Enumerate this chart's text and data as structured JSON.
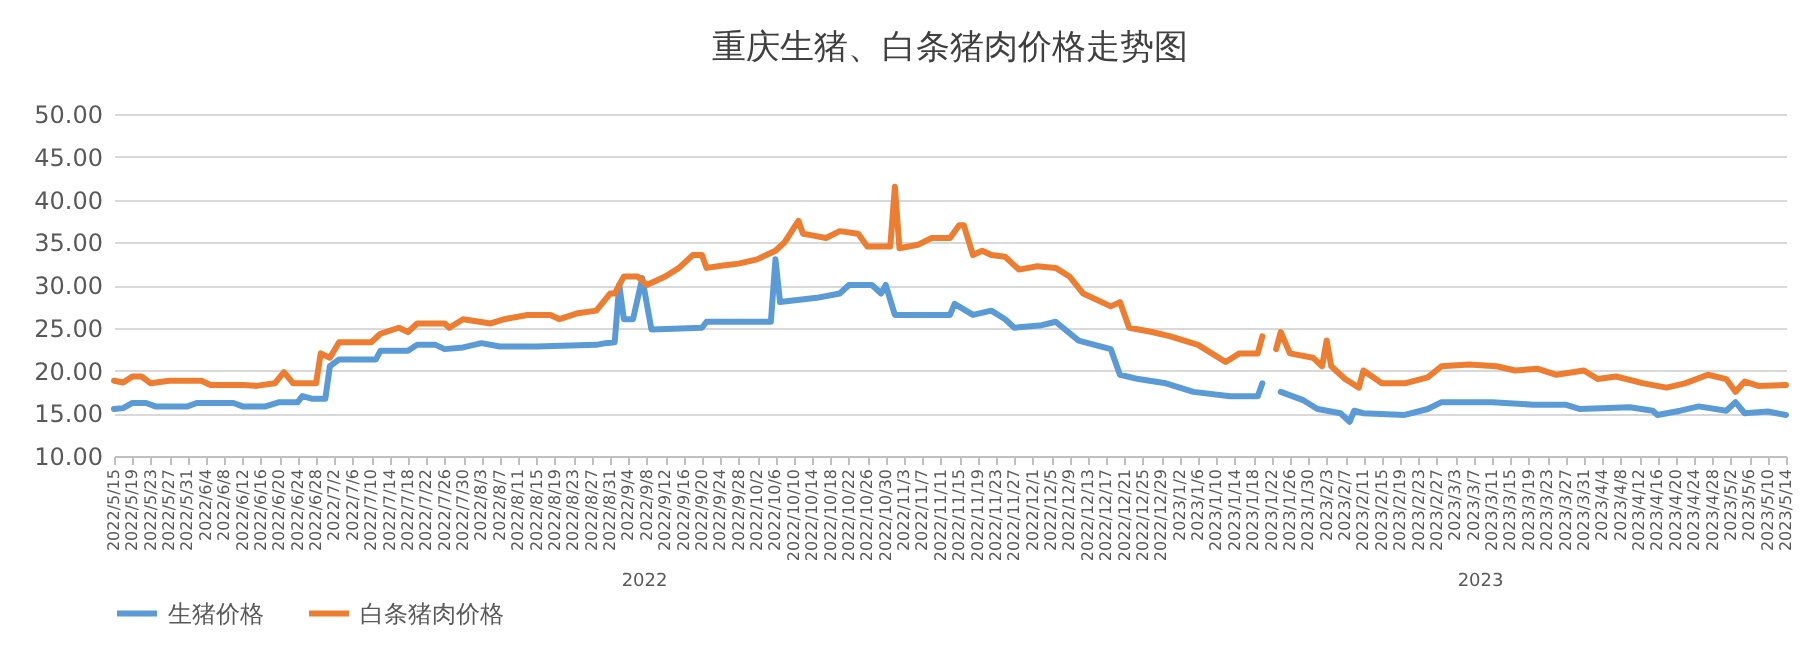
{
  "chart_data": {
    "type": "line",
    "title": "重庆生猪、白条猪肉价格走势图",
    "annotations": [
      "2022",
      "2023"
    ],
    "series": [
      {
        "name": "生猪价格",
        "color": "#5b9bd5",
        "x": [
          "2022-05-15",
          "2022-05-17",
          "2022-05-19",
          "2022-05-22",
          "2022-05-24",
          "2022-05-31",
          "2022-06-02",
          "2022-06-10",
          "2022-06-12",
          "2022-06-17",
          "2022-06-20",
          "2022-06-24",
          "2022-06-25",
          "2022-06-27",
          "2022-06-30",
          "2022-07-01",
          "2022-07-03",
          "2022-07-11",
          "2022-07-12",
          "2022-07-18",
          "2022-07-20",
          "2022-07-24",
          "2022-07-26",
          "2022-07-30",
          "2022-08-03",
          "2022-08-07",
          "2022-08-15",
          "2022-08-28",
          "2022-08-30",
          "2022-09-01",
          "2022-09-02",
          "2022-09-03",
          "2022-09-05",
          "2022-09-07",
          "2022-09-09",
          "2022-09-20",
          "2022-09-21",
          "2022-10-05",
          "2022-10-06",
          "2022-10-07",
          "2022-10-15",
          "2022-10-20",
          "2022-10-22",
          "2022-10-27",
          "2022-10-29",
          "2022-10-30",
          "2022-11-01",
          "2022-11-13",
          "2022-11-14",
          "2022-11-18",
          "2022-11-22",
          "2022-11-25",
          "2022-11-27",
          "2022-12-03",
          "2022-12-06",
          "2022-12-11",
          "2022-12-18",
          "2022-12-20",
          "2022-12-24",
          "2022-12-30",
          "2023-01-05",
          "2023-01-13",
          "2023-01-19",
          "2023-01-20",
          "2023-01-21",
          "2023-01-24",
          "2023-01-29",
          "2023-02-01",
          "2023-02-06",
          "2023-02-08",
          "2023-02-09",
          "2023-02-11",
          "2023-02-20",
          "2023-02-25",
          "2023-02-28",
          "2023-03-11",
          "2023-03-20",
          "2023-03-27",
          "2023-03-30",
          "2023-04-10",
          "2023-04-15",
          "2023-04-16",
          "2023-04-21",
          "2023-04-25",
          "2023-05-01",
          "2023-05-03",
          "2023-05-05",
          "2023-05-10",
          "2023-05-14"
        ],
        "values": [
          15.5,
          15.6,
          16.2,
          16.2,
          15.8,
          15.8,
          16.2,
          16.2,
          15.8,
          15.8,
          16.3,
          16.3,
          17.0,
          16.7,
          16.7,
          20.5,
          21.3,
          21.3,
          22.3,
          22.3,
          23.0,
          23.0,
          22.5,
          22.7,
          23.2,
          22.8,
          22.8,
          23.0,
          23.2,
          23.3,
          30.0,
          26.0,
          26.0,
          30.8,
          24.8,
          25.0,
          25.7,
          25.7,
          33.0,
          28.0,
          28.5,
          29.0,
          30.0,
          30.0,
          29.0,
          30.0,
          26.5,
          26.5,
          27.8,
          26.5,
          27.0,
          26.0,
          25.0,
          25.3,
          25.7,
          23.5,
          22.5,
          19.5,
          19.0,
          18.5,
          17.5,
          17.0,
          17.0,
          18.5,
          null,
          17.5,
          16.5,
          15.5,
          15.0,
          14.0,
          15.3,
          15.0,
          14.8,
          15.5,
          16.3,
          16.3,
          16.0,
          16.0,
          15.5,
          15.7,
          15.3,
          14.8,
          15.3,
          15.8,
          15.3,
          16.3,
          15.0,
          15.2,
          14.8
        ]
      },
      {
        "name": "白条猪肉价格",
        "color": "#ed7d31",
        "x": [
          "2022-05-15",
          "2022-05-17",
          "2022-05-19",
          "2022-05-21",
          "2022-05-23",
          "2022-05-27",
          "2022-06-03",
          "2022-06-05",
          "2022-06-12",
          "2022-06-15",
          "2022-06-19",
          "2022-06-21",
          "2022-06-23",
          "2022-06-28",
          "2022-06-29",
          "2022-07-01",
          "2022-07-03",
          "2022-07-10",
          "2022-07-12",
          "2022-07-16",
          "2022-07-18",
          "2022-07-20",
          "2022-07-26",
          "2022-07-27",
          "2022-07-30",
          "2022-08-05",
          "2022-08-08",
          "2022-08-13",
          "2022-08-18",
          "2022-08-20",
          "2022-08-24",
          "2022-08-28",
          "2022-08-31",
          "2022-09-01",
          "2022-09-03",
          "2022-09-06",
          "2022-09-08",
          "2022-09-12",
          "2022-09-15",
          "2022-09-18",
          "2022-09-20",
          "2022-09-21",
          "2022-09-25",
          "2022-09-28",
          "2022-10-02",
          "2022-10-06",
          "2022-10-08",
          "2022-10-11",
          "2022-10-12",
          "2022-10-14",
          "2022-10-17",
          "2022-10-20",
          "2022-10-24",
          "2022-10-26",
          "2022-10-31",
          "2022-11-01",
          "2022-11-02",
          "2022-11-06",
          "2022-11-09",
          "2022-11-13",
          "2022-11-15",
          "2022-11-16",
          "2022-11-18",
          "2022-11-20",
          "2022-11-22",
          "2022-11-25",
          "2022-11-28",
          "2022-12-02",
          "2022-12-06",
          "2022-12-09",
          "2022-12-12",
          "2022-12-18",
          "2022-12-20",
          "2022-12-22",
          "2022-12-27",
          "2022-12-31",
          "2023-01-06",
          "2023-01-12",
          "2023-01-15",
          "2023-01-19",
          "2023-01-20",
          "2023-01-21",
          "2023-01-23",
          "2023-01-24",
          "2023-01-26",
          "2023-01-31",
          "2023-02-02",
          "2023-02-03",
          "2023-02-04",
          "2023-02-07",
          "2023-02-10",
          "2023-02-11",
          "2023-02-15",
          "2023-02-20",
          "2023-02-25",
          "2023-02-28",
          "2023-03-06",
          "2023-03-12",
          "2023-03-16",
          "2023-03-21",
          "2023-03-25",
          "2023-03-31",
          "2023-04-03",
          "2023-04-07",
          "2023-04-13",
          "2023-04-18",
          "2023-04-22",
          "2023-04-27",
          "2023-05-01",
          "2023-05-03",
          "2023-05-05",
          "2023-05-08",
          "2023-05-14"
        ],
        "values": [
          18.8,
          18.6,
          19.3,
          19.3,
          18.5,
          18.8,
          18.8,
          18.3,
          18.3,
          18.2,
          18.5,
          19.8,
          18.5,
          18.5,
          22.0,
          21.5,
          23.3,
          23.3,
          24.3,
          25.0,
          24.5,
          25.5,
          25.5,
          25.0,
          26.0,
          25.5,
          26.0,
          26.5,
          26.5,
          26.0,
          26.7,
          27.0,
          29.0,
          29.0,
          31.0,
          31.0,
          30.0,
          31.0,
          32.0,
          33.5,
          33.5,
          32.0,
          32.3,
          32.5,
          33.0,
          34.0,
          35.0,
          37.5,
          36.0,
          35.8,
          35.5,
          36.3,
          36.0,
          34.5,
          34.5,
          41.5,
          34.3,
          34.7,
          35.5,
          35.5,
          37.0,
          37.0,
          33.5,
          34.0,
          33.5,
          33.3,
          31.8,
          32.2,
          32.0,
          31.0,
          29.0,
          27.5,
          28.0,
          25.0,
          24.5,
          24.0,
          23.0,
          21.0,
          22.0,
          22.0,
          24.0,
          null,
          22.5,
          24.5,
          22.0,
          21.5,
          20.5,
          23.5,
          20.5,
          19.0,
          18.0,
          20.0,
          18.5,
          18.5,
          19.2,
          20.5,
          20.7,
          20.5,
          20.0,
          20.2,
          19.5,
          20.0,
          19.0,
          19.3,
          18.5,
          18.0,
          18.5,
          19.5,
          19.0,
          17.5,
          18.7,
          18.2,
          18.3
        ]
      }
    ],
    "xlim": [
      "2022-05-15",
      "2023-05-14"
    ],
    "xticks": [
      {
        "value": "2022-05-15",
        "label": "2022/5/15"
      },
      {
        "value": "2022-05-19",
        "label": "2022/5/19"
      },
      {
        "value": "2022-05-23",
        "label": "2022/5/23"
      },
      {
        "value": "2022-05-27",
        "label": "2022/5/27"
      },
      {
        "value": "2022-05-31",
        "label": "2022/5/31"
      },
      {
        "value": "2022-06-04",
        "label": "2022/6/4"
      },
      {
        "value": "2022-06-08",
        "label": "2022/6/8"
      },
      {
        "value": "2022-06-12",
        "label": "2022/6/12"
      },
      {
        "value": "2022-06-16",
        "label": "2022/6/16"
      },
      {
        "value": "2022-06-20",
        "label": "2022/6/20"
      },
      {
        "value": "2022-06-24",
        "label": "2022/6/24"
      },
      {
        "value": "2022-06-28",
        "label": "2022/6/28"
      },
      {
        "value": "2022-07-02",
        "label": "2022/7/2"
      },
      {
        "value": "2022-07-06",
        "label": "2022/7/6"
      },
      {
        "value": "2022-07-10",
        "label": "2022/7/10"
      },
      {
        "value": "2022-07-14",
        "label": "2022/7/14"
      },
      {
        "value": "2022-07-18",
        "label": "2022/7/18"
      },
      {
        "value": "2022-07-22",
        "label": "2022/7/22"
      },
      {
        "value": "2022-07-26",
        "label": "2022/7/26"
      },
      {
        "value": "2022-07-30",
        "label": "2022/7/30"
      },
      {
        "value": "2022-08-03",
        "label": "2022/8/3"
      },
      {
        "value": "2022-08-07",
        "label": "2022/8/7"
      },
      {
        "value": "2022-08-11",
        "label": "2022/8/11"
      },
      {
        "value": "2022-08-15",
        "label": "2022/8/15"
      },
      {
        "value": "2022-08-19",
        "label": "2022/8/19"
      },
      {
        "value": "2022-08-23",
        "label": "2022/8/23"
      },
      {
        "value": "2022-08-27",
        "label": "2022/8/27"
      },
      {
        "value": "2022-08-31",
        "label": "2022/8/31"
      },
      {
        "value": "2022-09-04",
        "label": "2022/9/4"
      },
      {
        "value": "2022-09-08",
        "label": "2022/9/8"
      },
      {
        "value": "2022-09-12",
        "label": "2022/9/12"
      },
      {
        "value": "2022-09-16",
        "label": "2022/9/16"
      },
      {
        "value": "2022-09-20",
        "label": "2022/9/20"
      },
      {
        "value": "2022-09-24",
        "label": "2022/9/24"
      },
      {
        "value": "2022-09-28",
        "label": "2022/9/28"
      },
      {
        "value": "2022-10-02",
        "label": "2022/10/2"
      },
      {
        "value": "2022-10-06",
        "label": "2022/10/6"
      },
      {
        "value": "2022-10-10",
        "label": "2022/10/10"
      },
      {
        "value": "2022-10-14",
        "label": "2022/10/14"
      },
      {
        "value": "2022-10-18",
        "label": "2022/10/18"
      },
      {
        "value": "2022-10-22",
        "label": "2022/10/22"
      },
      {
        "value": "2022-10-26",
        "label": "2022/10/26"
      },
      {
        "value": "2022-10-30",
        "label": "2022/10/30"
      },
      {
        "value": "2022-11-03",
        "label": "2022/11/3"
      },
      {
        "value": "2022-11-07",
        "label": "2022/11/7"
      },
      {
        "value": "2022-11-11",
        "label": "2022/11/11"
      },
      {
        "value": "2022-11-15",
        "label": "2022/11/15"
      },
      {
        "value": "2022-11-19",
        "label": "2022/11/19"
      },
      {
        "value": "2022-11-23",
        "label": "2022/11/23"
      },
      {
        "value": "2022-11-27",
        "label": "2022/11/27"
      },
      {
        "value": "2022-12-01",
        "label": "2022/12/1"
      },
      {
        "value": "2022-12-05",
        "label": "2022/12/5"
      },
      {
        "value": "2022-12-09",
        "label": "2022/12/9"
      },
      {
        "value": "2022-12-13",
        "label": "2022/12/13"
      },
      {
        "value": "2022-12-17",
        "label": "2022/12/17"
      },
      {
        "value": "2022-12-21",
        "label": "2022/12/21"
      },
      {
        "value": "2022-12-25",
        "label": "2022/12/25"
      },
      {
        "value": "2022-12-29",
        "label": "2022/12/29"
      },
      {
        "value": "2023-01-02",
        "label": "2023/1/2"
      },
      {
        "value": "2023-01-06",
        "label": "2023/1/6"
      },
      {
        "value": "2023-01-10",
        "label": "2023/1/10"
      },
      {
        "value": "2023-01-14",
        "label": "2023/1/14"
      },
      {
        "value": "2023-01-18",
        "label": "2023/1/18"
      },
      {
        "value": "2023-01-22",
        "label": "2023/1/22"
      },
      {
        "value": "2023-01-26",
        "label": "2023/1/26"
      },
      {
        "value": "2023-01-30",
        "label": "2023/1/30"
      },
      {
        "value": "2023-02-03",
        "label": "2023/2/3"
      },
      {
        "value": "2023-02-07",
        "label": "2023/2/7"
      },
      {
        "value": "2023-02-11",
        "label": "2023/2/11"
      },
      {
        "value": "2023-02-15",
        "label": "2023/2/15"
      },
      {
        "value": "2023-02-19",
        "label": "2023/2/19"
      },
      {
        "value": "2023-02-23",
        "label": "2023/2/23"
      },
      {
        "value": "2023-02-27",
        "label": "2023/2/27"
      },
      {
        "value": "2023-03-03",
        "label": "2023/3/3"
      },
      {
        "value": "2023-03-07",
        "label": "2023/3/7"
      },
      {
        "value": "2023-03-11",
        "label": "2023/3/11"
      },
      {
        "value": "2023-03-15",
        "label": "2023/3/15"
      },
      {
        "value": "2023-03-19",
        "label": "2023/3/19"
      },
      {
        "value": "2023-03-23",
        "label": "2023/3/23"
      },
      {
        "value": "2023-03-27",
        "label": "2023/3/27"
      },
      {
        "value": "2023-03-31",
        "label": "2023/3/31"
      },
      {
        "value": "2023-04-04",
        "label": "2023/4/4"
      },
      {
        "value": "2023-04-08",
        "label": "2023/4/8"
      },
      {
        "value": "2023-04-12",
        "label": "2023/4/12"
      },
      {
        "value": "2023-04-16",
        "label": "2023/4/16"
      },
      {
        "value": "2023-04-20",
        "label": "2023/4/20"
      },
      {
        "value": "2023-04-24",
        "label": "2023/4/24"
      },
      {
        "value": "2023-04-28",
        "label": "2023/4/28"
      },
      {
        "value": "2023-05-02",
        "label": "2023/5/2"
      },
      {
        "value": "2023-05-06",
        "label": "2023/5/6"
      },
      {
        "value": "2023-05-10",
        "label": "2023/5/10"
      },
      {
        "value": "2023-05-14",
        "label": "2023/5/14"
      }
    ],
    "ylim": [
      10,
      50
    ],
    "yticks": [
      {
        "value": 10,
        "label": "10.00"
      },
      {
        "value": 15,
        "label": "15.00"
      },
      {
        "value": 20,
        "label": "20.00"
      },
      {
        "value": 25,
        "label": "25.00"
      },
      {
        "value": 30,
        "label": "30.00"
      },
      {
        "value": 35,
        "label": "35.00"
      },
      {
        "value": 40,
        "label": "40.00"
      },
      {
        "value": 45,
        "label": "45.00"
      },
      {
        "value": 50,
        "label": "50.00"
      }
    ],
    "grid": "y",
    "legend": "bottom",
    "marker": "none",
    "line_style": "solid"
  }
}
